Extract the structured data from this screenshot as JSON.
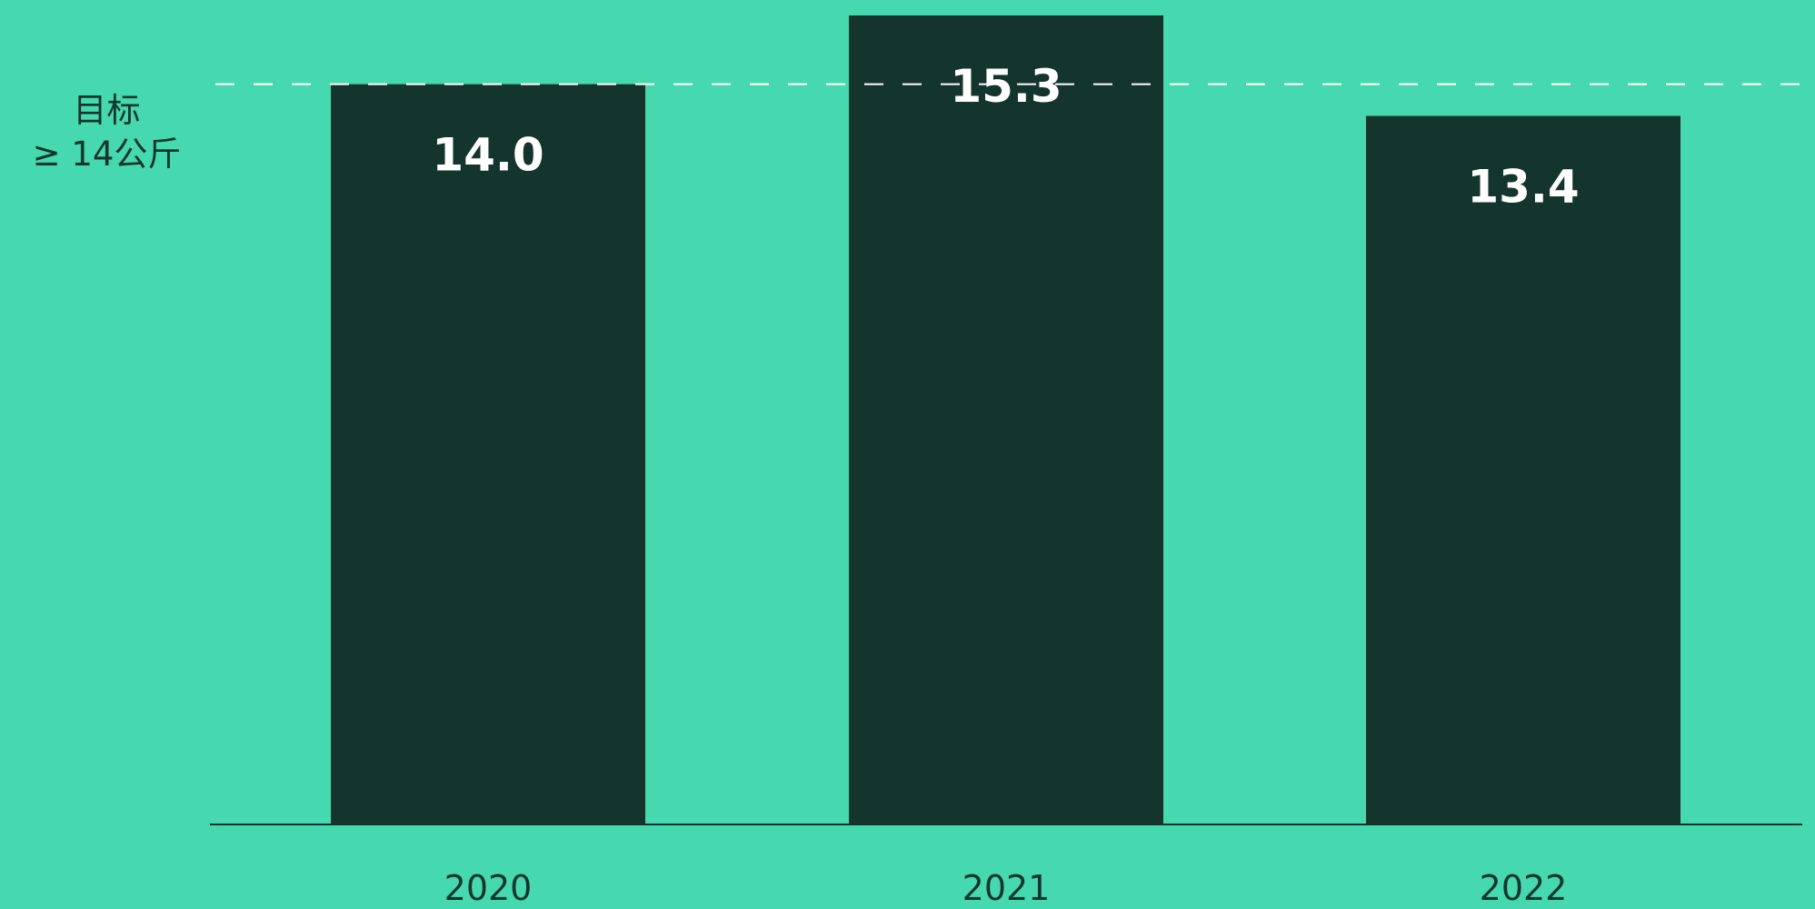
{
  "colors": {
    "background": "#46d8ae",
    "bar": "#13352d",
    "bar_label": "#ffffff",
    "axis": "#13352d",
    "target_line": "#ffffff"
  },
  "target": {
    "label_line1": "目标",
    "label_line2": "≥ 14公斤",
    "value": 14
  },
  "chart_data": {
    "type": "bar",
    "categories": [
      "2020",
      "2021",
      "2022"
    ],
    "values": [
      14.0,
      15.3,
      13.4
    ],
    "value_labels": [
      "14.0",
      "15.3",
      "13.4"
    ],
    "title": "",
    "xlabel": "",
    "ylabel": "",
    "ylim": [
      0,
      15.3
    ],
    "reference_line": {
      "value": 14,
      "style": "dashed"
    },
    "grid": false,
    "legend": "none"
  }
}
